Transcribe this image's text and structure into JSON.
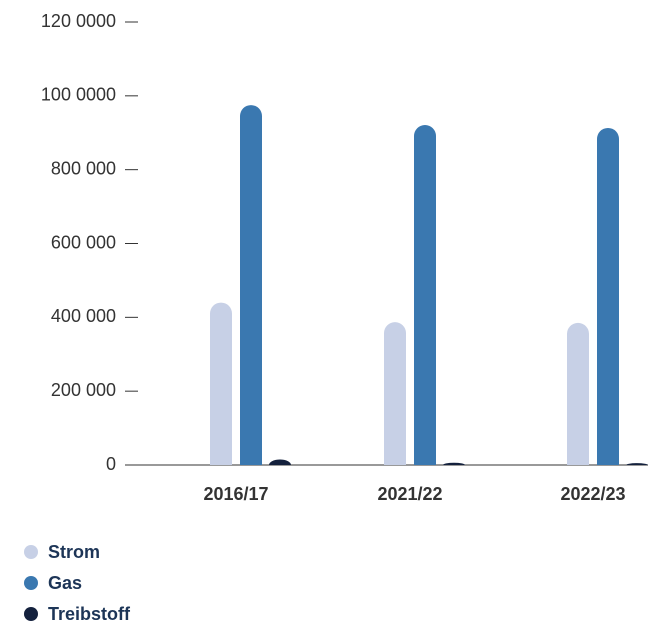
{
  "chart_data": {
    "type": "bar",
    "categories": [
      "2016/17",
      "2021/22",
      "2022/23"
    ],
    "series": [
      {
        "name": "Strom",
        "color": "#c7d0e6",
        "values": [
          440000,
          387000,
          385000
        ]
      },
      {
        "name": "Gas",
        "color": "#3a78b0",
        "values": [
          975000,
          921000,
          913000
        ]
      },
      {
        "name": "Treibstoff",
        "color": "#14213d",
        "values": [
          15000,
          6000,
          5000
        ]
      }
    ],
    "ylim": [
      0,
      1200000
    ],
    "yticks": [
      0,
      {
        "value": 200000,
        "label": "200 000"
      },
      {
        "value": 400000,
        "label": "400 000"
      },
      {
        "value": 600000,
        "label": "600 000"
      },
      {
        "value": 800000,
        "label": "800 000"
      },
      {
        "value": 1000000,
        "label": "100 0000"
      },
      {
        "value": 1200000,
        "label": "120 0000"
      }
    ],
    "legend": "bottom-left"
  }
}
